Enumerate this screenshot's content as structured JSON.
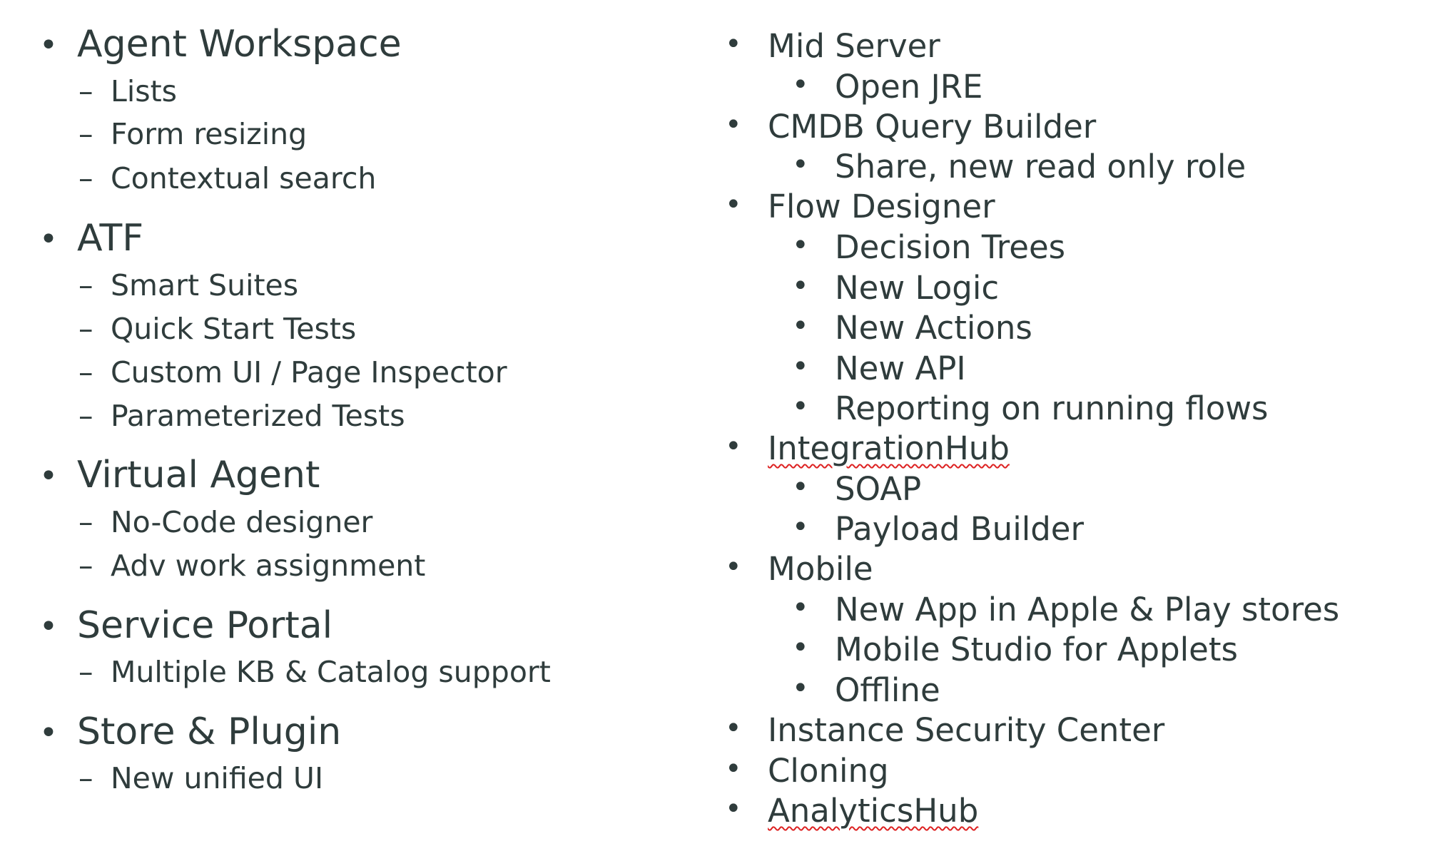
{
  "left_column": {
    "sections": [
      {
        "title": "Agent Workspace",
        "items": [
          "Lists",
          "Form resizing",
          "Contextual search"
        ]
      },
      {
        "title": "ATF",
        "items": [
          "Smart Suites",
          "Quick Start Tests",
          "Custom UI / Page Inspector",
          "Parameterized Tests"
        ]
      },
      {
        "title": "Virtual Agent",
        "items": [
          "No-Code designer",
          "Adv work assignment"
        ]
      },
      {
        "title": "Service Portal",
        "items": [
          "Multiple KB & Catalog support"
        ]
      },
      {
        "title": "Store & Plugin",
        "items": [
          "New unified UI"
        ]
      }
    ]
  },
  "right_column": {
    "sections": [
      {
        "title": "Mid Server",
        "items": [
          "Open JRE"
        ]
      },
      {
        "title": "CMDB Query Builder",
        "items": [
          "Share, new read only role"
        ]
      },
      {
        "title": "Flow Designer",
        "items": [
          "Decision Trees",
          "New Logic",
          "New Actions",
          "New API",
          "Reporting on running flows"
        ]
      },
      {
        "title": "IntegrationHub",
        "items": [
          "SOAP",
          "Payload Builder"
        ]
      },
      {
        "title": "Mobile",
        "items": [
          "New App in Apple & Play stores",
          "Mobile Studio for Applets",
          "Offline"
        ]
      },
      {
        "title": "Instance Security Center",
        "items": []
      },
      {
        "title": "Cloning",
        "items": []
      },
      {
        "title": "AnalyticsHub",
        "items": []
      }
    ]
  },
  "glyphs": {
    "bullet": "•",
    "dash": "–"
  },
  "colors": {
    "text": "#2f3c3c",
    "spellcheck_underline": "#dd2222"
  }
}
